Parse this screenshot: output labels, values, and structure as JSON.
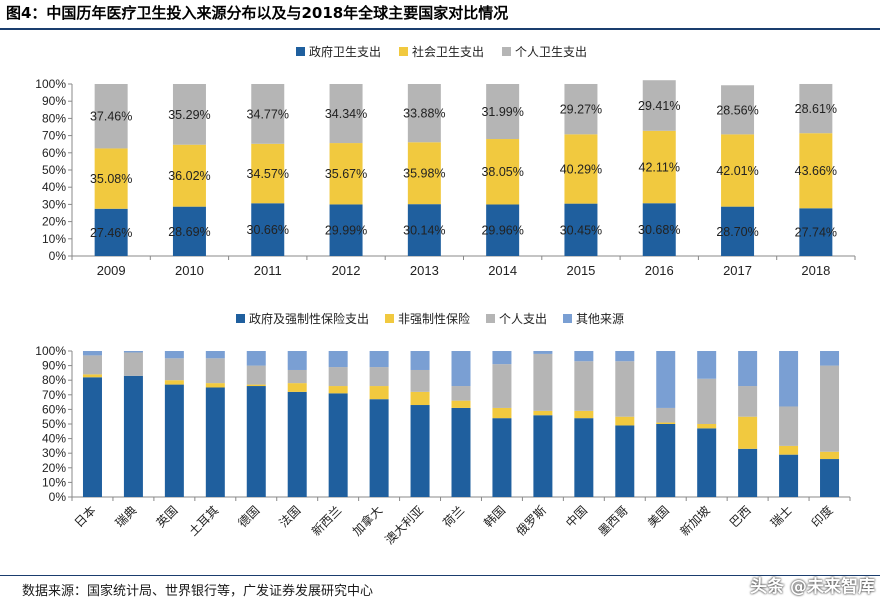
{
  "title": "图4：中国历年医疗卫生投入来源分布以及与2018年全球主要国家对比情况",
  "source": "数据来源：国家统计局、世界银行等，广发证券发展研究中心",
  "watermark": "头条 @未来智库",
  "colors": {
    "navy": "#1f5f9e",
    "yellow": "#f1c93f",
    "gray": "#b5b5b5",
    "lightblue": "#7a9fd3"
  },
  "chart_data": [
    {
      "type": "bar",
      "stacked": true,
      "categories": [
        "2009",
        "2010",
        "2011",
        "2012",
        "2013",
        "2014",
        "2015",
        "2016",
        "2017",
        "2018"
      ],
      "series": [
        {
          "name": "政府卫生支出",
          "color": "navy",
          "values": [
            27.46,
            28.69,
            30.66,
            29.99,
            30.14,
            29.96,
            30.45,
            30.68,
            28.7,
            27.74
          ],
          "labels": [
            "27.46%",
            "28.69%",
            "30.66%",
            "29.99%",
            "30.14%",
            "29.96%",
            "30.45%",
            "30.68%",
            "28.70%",
            "27.74%"
          ]
        },
        {
          "name": "社会卫生支出",
          "color": "yellow",
          "values": [
            35.08,
            36.02,
            34.57,
            35.67,
            35.98,
            38.05,
            40.29,
            42.11,
            42.01,
            43.66
          ],
          "labels": [
            "35.08%",
            "36.02%",
            "34.57%",
            "35.67%",
            "35.98%",
            "38.05%",
            "40.29%",
            "42.11%",
            "42.01%",
            "43.66%"
          ]
        },
        {
          "name": "个人卫生支出",
          "color": "gray",
          "values": [
            37.46,
            35.29,
            34.77,
            34.34,
            33.88,
            31.99,
            29.27,
            29.41,
            28.56,
            28.61
          ],
          "labels": [
            "37.46%",
            "35.29%",
            "34.77%",
            "34.34%",
            "33.88%",
            "31.99%",
            "29.27%",
            "29.41%",
            "28.56%",
            "28.61%"
          ]
        }
      ],
      "ylim": [
        0,
        100
      ],
      "yticks": [
        "0%",
        "10%",
        "20%",
        "30%",
        "40%",
        "50%",
        "60%",
        "70%",
        "80%",
        "90%",
        "100%"
      ],
      "legend": "top-center",
      "grid": false
    },
    {
      "type": "bar",
      "stacked": true,
      "categories": [
        "日本",
        "瑞典",
        "英国",
        "土耳其",
        "德国",
        "法国",
        "新西兰",
        "加拿大",
        "澳大利亚",
        "荷兰",
        "韩国",
        "俄罗斯",
        "中国",
        "墨西哥",
        "美国",
        "新加坡",
        "巴西",
        "瑞士",
        "印度"
      ],
      "series": [
        {
          "name": "政府及强制性保险支出",
          "color": "navy",
          "values": [
            82,
            83,
            77,
            75,
            76,
            72,
            71,
            67,
            63,
            61,
            54,
            56,
            54,
            49,
            50,
            47,
            33,
            29,
            26
          ]
        },
        {
          "name": "非强制性保险",
          "color": "yellow",
          "values": [
            2,
            0,
            3,
            3,
            1,
            6,
            5,
            9,
            9,
            5,
            7,
            3,
            5,
            6,
            1,
            3,
            22,
            6,
            5
          ]
        },
        {
          "name": "个人支出",
          "color": "gray",
          "values": [
            13,
            16,
            15,
            17,
            13,
            9,
            13,
            13,
            15,
            10,
            30,
            39,
            34,
            38,
            10,
            31,
            21,
            27,
            59
          ]
        },
        {
          "name": "其他来源",
          "color": "lightblue",
          "values": [
            3,
            1,
            5,
            5,
            10,
            13,
            11,
            11,
            13,
            24,
            9,
            2,
            7,
            7,
            39,
            19,
            24,
            38,
            10
          ]
        }
      ],
      "ylim": [
        0,
        100
      ],
      "yticks": [
        "0%",
        "10%",
        "20%",
        "30%",
        "40%",
        "50%",
        "60%",
        "70%",
        "80%",
        "90%",
        "100%"
      ],
      "legend": "top-center",
      "grid": false
    }
  ]
}
